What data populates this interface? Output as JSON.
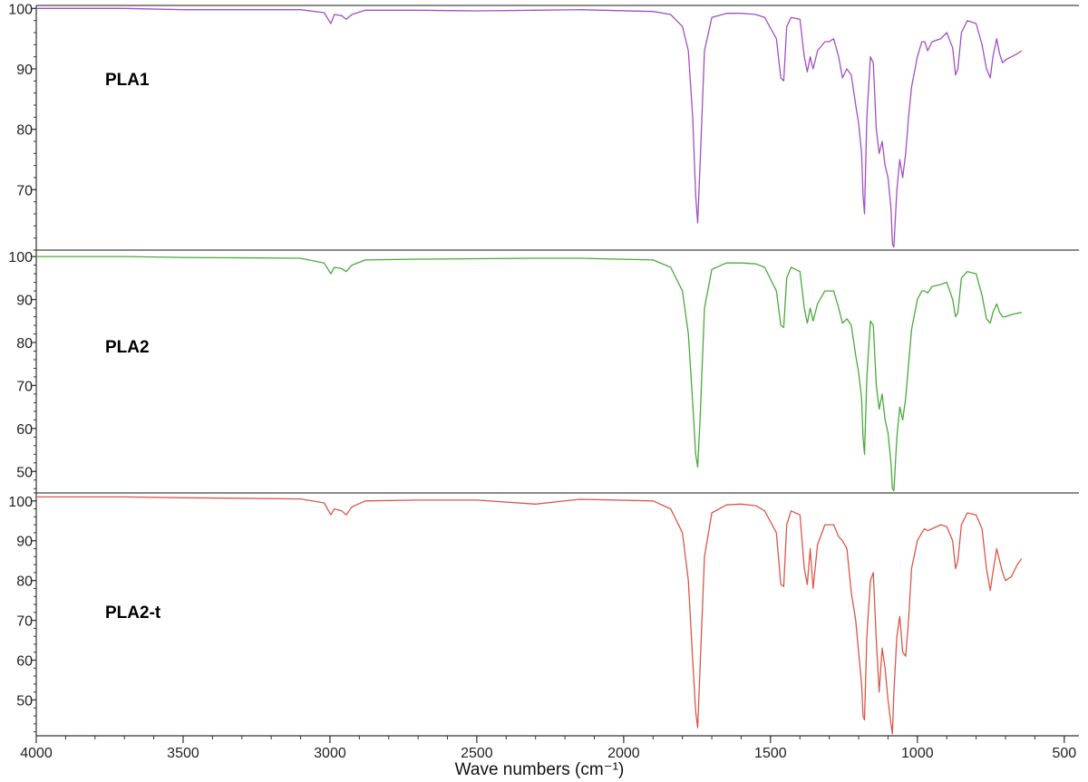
{
  "chart_data": {
    "type": "line",
    "xlabel": "Wave numbers (cm⁻¹)",
    "xlim": [
      4000,
      450
    ],
    "x_ticks": [
      4000,
      3500,
      3000,
      2500,
      2000,
      1500,
      1000,
      500
    ],
    "x_tick_labels": [
      "4000",
      "3500",
      "3000",
      "2500",
      "2000",
      "1500",
      "1000",
      "500"
    ],
    "panels": [
      {
        "name": "PLA1",
        "color": "#a24fc4",
        "ylim": [
          60,
          100.5
        ],
        "y_ticks": [
          100,
          90,
          80,
          70
        ],
        "y_tick_labels": [
          "100",
          "90",
          "80",
          "70"
        ],
        "x": [
          4000,
          3700,
          3500,
          3100,
          3020,
          2997,
          2985,
          2960,
          2945,
          2925,
          2880,
          2700,
          2500,
          2300,
          2150,
          1900,
          1840,
          1800,
          1780,
          1765,
          1755,
          1748,
          1740,
          1725,
          1700,
          1650,
          1600,
          1550,
          1520,
          1480,
          1465,
          1455,
          1445,
          1430,
          1400,
          1385,
          1375,
          1365,
          1355,
          1340,
          1315,
          1300,
          1285,
          1268,
          1255,
          1240,
          1225,
          1210,
          1200,
          1190,
          1185,
          1180,
          1172,
          1160,
          1150,
          1140,
          1130,
          1120,
          1110,
          1100,
          1090,
          1085,
          1080,
          1070,
          1060,
          1050,
          1040,
          1030,
          1020,
          1000,
          985,
          975,
          965,
          950,
          920,
          900,
          880,
          870,
          862,
          850,
          830,
          800,
          780,
          765,
          752,
          743,
          730,
          720,
          710,
          700,
          680,
          660,
          645
        ],
        "y": [
          100,
          100,
          99.8,
          99.8,
          99.3,
          97.5,
          99,
          98.8,
          98.2,
          99,
          99.7,
          99.7,
          99.6,
          99.7,
          99.8,
          99.5,
          99,
          97,
          93,
          82,
          69,
          64.5,
          74,
          93,
          98.5,
          99.2,
          99.2,
          99,
          98.5,
          95,
          88.5,
          88,
          97,
          98.5,
          98.2,
          92,
          89.5,
          92,
          90,
          93,
          94.5,
          94.5,
          95,
          92,
          88.5,
          90,
          89,
          84,
          81,
          76,
          69,
          66,
          82,
          92,
          91,
          80,
          76,
          78,
          74,
          72,
          67,
          61,
          60.5,
          70,
          75,
          72,
          76,
          82,
          87,
          92,
          94.5,
          94.5,
          93,
          94.5,
          95,
          96,
          93.5,
          89,
          90,
          96,
          98,
          97.5,
          94,
          90,
          88.5,
          92,
          95,
          92.5,
          91,
          91.5,
          92,
          92.5,
          93
        ]
      },
      {
        "name": "PLA2",
        "color": "#4aaa3a",
        "ylim": [
          45,
          101.5
        ],
        "y_ticks": [
          100,
          90,
          80,
          70,
          60,
          50
        ],
        "y_tick_labels": [
          "100",
          "90",
          "80",
          "70",
          "60",
          "50"
        ],
        "x": [
          4000,
          3700,
          3500,
          3100,
          3020,
          2997,
          2985,
          2960,
          2945,
          2925,
          2880,
          2700,
          2500,
          2300,
          2150,
          1900,
          1840,
          1800,
          1780,
          1765,
          1755,
          1748,
          1740,
          1725,
          1700,
          1650,
          1600,
          1550,
          1520,
          1480,
          1465,
          1455,
          1445,
          1430,
          1400,
          1385,
          1375,
          1365,
          1355,
          1340,
          1315,
          1300,
          1285,
          1268,
          1255,
          1240,
          1225,
          1210,
          1200,
          1190,
          1185,
          1180,
          1172,
          1160,
          1150,
          1140,
          1130,
          1120,
          1110,
          1100,
          1090,
          1085,
          1080,
          1070,
          1060,
          1050,
          1040,
          1030,
          1020,
          1000,
          985,
          975,
          965,
          950,
          920,
          900,
          880,
          870,
          862,
          850,
          830,
          800,
          780,
          765,
          752,
          743,
          730,
          720,
          710,
          700,
          680,
          660,
          645
        ],
        "y": [
          100,
          100,
          99.8,
          99.6,
          98.5,
          96,
          97.5,
          97.2,
          96.5,
          98,
          99.2,
          99.4,
          99.5,
          99.6,
          99.6,
          99.2,
          97.5,
          92,
          82,
          66,
          54,
          51,
          62,
          88,
          97,
          98.5,
          98.5,
          98.3,
          97.5,
          92,
          84,
          83.5,
          95,
          97.5,
          96.5,
          88,
          84.5,
          88,
          85,
          89,
          92,
          92,
          92,
          88,
          84.5,
          85.5,
          84,
          77,
          73,
          67,
          58,
          54,
          72,
          85,
          84,
          70,
          64.5,
          68,
          62,
          59,
          52,
          46,
          45.5,
          58,
          65,
          62,
          67,
          75,
          83,
          90,
          92,
          92,
          91.5,
          93,
          93.5,
          94,
          90,
          86,
          87,
          95,
          96.5,
          96,
          91,
          85.5,
          84.5,
          87,
          89,
          87,
          86,
          86,
          86.5,
          86.8,
          87
        ]
      },
      {
        "name": "PLA2-t",
        "color": "#d9574a",
        "ylim": [
          41,
          102
        ],
        "y_ticks": [
          100,
          90,
          80,
          70,
          60,
          50
        ],
        "y_tick_labels": [
          "100",
          "90",
          "80",
          "70",
          "60",
          "50"
        ],
        "x": [
          4000,
          3700,
          3500,
          3100,
          3020,
          2997,
          2985,
          2960,
          2945,
          2925,
          2880,
          2700,
          2500,
          2300,
          2150,
          1900,
          1840,
          1800,
          1780,
          1765,
          1755,
          1748,
          1740,
          1725,
          1700,
          1650,
          1600,
          1550,
          1520,
          1480,
          1465,
          1455,
          1445,
          1430,
          1400,
          1385,
          1375,
          1365,
          1355,
          1340,
          1315,
          1300,
          1285,
          1268,
          1255,
          1240,
          1225,
          1210,
          1200,
          1190,
          1185,
          1180,
          1172,
          1160,
          1150,
          1140,
          1130,
          1120,
          1110,
          1100,
          1090,
          1085,
          1080,
          1070,
          1060,
          1050,
          1040,
          1030,
          1020,
          1000,
          985,
          975,
          965,
          950,
          920,
          900,
          880,
          870,
          862,
          850,
          830,
          800,
          780,
          765,
          752,
          743,
          730,
          720,
          710,
          700,
          680,
          660,
          645
        ],
        "y": [
          101,
          101,
          100.8,
          100.5,
          99.5,
          96.5,
          98,
          97.5,
          96.5,
          98.5,
          100,
          100.2,
          100.2,
          99.2,
          100.4,
          100,
          98,
          92,
          80,
          60,
          47,
          43,
          58,
          86,
          97,
          99,
          99.2,
          98.8,
          97.5,
          92,
          79,
          78.5,
          94,
          97.5,
          96.5,
          83,
          79,
          88,
          78,
          89,
          94,
          94,
          94,
          91,
          90,
          88,
          77,
          70,
          62,
          54,
          46,
          45,
          66,
          80,
          82,
          65,
          52,
          63,
          58,
          50,
          44,
          41.5,
          52,
          66,
          71,
          62,
          61,
          70,
          83,
          90,
          92,
          93,
          92.5,
          93,
          94,
          93.5,
          90,
          83,
          85,
          94,
          97,
          96.5,
          93,
          83,
          77.5,
          82,
          88,
          85,
          82,
          80,
          81,
          84,
          85.5
        ]
      }
    ]
  }
}
